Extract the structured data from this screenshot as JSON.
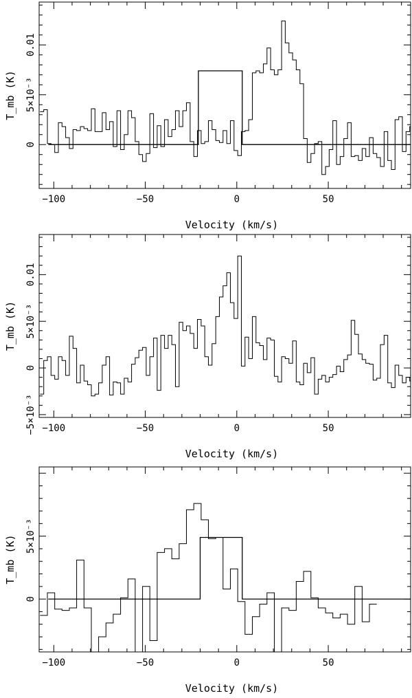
{
  "chart_data": [
    {
      "type": "line",
      "style": "histogram-step",
      "xlabel": "Velocity (km/s)",
      "ylabel": "T_mb (K)",
      "xlim": [
        -108,
        95
      ],
      "ylim": [
        -0.0044,
        0.0143
      ],
      "x_ticks": [
        -100,
        -50,
        0,
        50
      ],
      "x_tick_labels": [
        "−100",
        "−50",
        "0",
        "50"
      ],
      "y_ticks": [
        0,
        0.005,
        0.01
      ],
      "y_tick_labels": [
        "0",
        "5×10⁻³",
        "0.01"
      ],
      "bin_start": -107.5,
      "bin_width": 2,
      "spectrum": [
        0.0033,
        0.0035,
        0.0001,
        0.0,
        -0.0008,
        0.0022,
        0.0018,
        0.0007,
        -0.0004,
        0.0015,
        0.0014,
        0.0018,
        0.0016,
        0.0014,
        0.0036,
        0.0013,
        0.0013,
        0.0032,
        0.0015,
        0.0023,
        -0.0002,
        0.0034,
        -0.0005,
        0.001,
        0.0034,
        0.0027,
        0.0003,
        -0.001,
        -0.0017,
        -0.0009,
        0.0031,
        -0.0003,
        0.0019,
        -0.0002,
        0.0025,
        0.0008,
        0.0015,
        0.0034,
        0.0018,
        0.0034,
        0.0042,
        0.0003,
        -0.0012,
        0.0014,
        0.0001,
        0.0003,
        0.0024,
        0.0015,
        0.0004,
        0.0002,
        0.0014,
        0.0001,
        0.0024,
        -0.0006,
        -0.0011,
        0.0013,
        0.0014,
        0.0025,
        0.0072,
        0.0074,
        0.0072,
        0.0081,
        0.0097,
        0.0075,
        0.007,
        0.0075,
        0.0124,
        0.0102,
        0.0092,
        0.0085,
        0.0075,
        0.0061,
        0.0006,
        -0.0018,
        -0.0009,
        0.0001,
        0.0003,
        -0.003,
        -0.0022,
        -0.0005,
        0.0024,
        -0.002,
        -0.0012,
        0.0006,
        0.0022,
        -0.0012,
        -0.0011,
        -0.0016,
        -0.0004,
        -0.0012,
        0.0007,
        -0.0009,
        -0.0013,
        -0.0022,
        0.0013,
        -0.0016,
        -0.0025,
        0.0025,
        0.0028,
        -0.0007,
        0.0013,
        0.0018,
        -0.001
      ],
      "model": {
        "x": [
          -103,
          -21,
          -21,
          3,
          3,
          95
        ],
        "y": [
          0,
          0,
          0.0074,
          0.0074,
          0,
          0
        ]
      }
    },
    {
      "type": "line",
      "style": "histogram-step",
      "xlabel": "Velocity (km/s)",
      "ylabel": "T_mb (K)",
      "xlim": [
        -108,
        95
      ],
      "ylim": [
        -0.0053,
        0.0143
      ],
      "x_ticks": [
        -100,
        -50,
        0,
        50
      ],
      "x_tick_labels": [
        "−100",
        "−50",
        "0",
        "50"
      ],
      "y_ticks": [
        -0.005,
        0,
        0.005,
        0.01
      ],
      "y_tick_labels": [
        "−5×10⁻³",
        "0",
        "5×10⁻³",
        "0.01"
      ],
      "bin_start": -107.5,
      "bin_width": 2,
      "spectrum": [
        -0.0028,
        0.0008,
        0.0012,
        -0.0008,
        -0.0012,
        0.0012,
        0.0008,
        -0.0008,
        0.0034,
        0.0021,
        -0.0016,
        0.0003,
        -0.0014,
        -0.0018,
        -0.003,
        -0.0028,
        -0.0016,
        0.0003,
        0.0012,
        -0.0029,
        -0.0015,
        -0.0016,
        -0.0028,
        -0.0011,
        -0.0015,
        0.0004,
        0.0011,
        0.0019,
        0.0022,
        -0.0008,
        0.0012,
        0.0032,
        -0.0024,
        0.0035,
        0.0021,
        0.0035,
        0.0025,
        -0.002,
        0.0049,
        0.004,
        0.0045,
        0.0037,
        0.0021,
        0.0052,
        0.0045,
        0.0012,
        0.0003,
        0.0026,
        0.0055,
        0.0076,
        0.0088,
        0.0102,
        0.007,
        0.0053,
        0.012,
        0.0002,
        0.0033,
        0.001,
        0.0055,
        0.0027,
        0.0024,
        0.0009,
        0.0032,
        0.003,
        -0.0009,
        -0.0015,
        0.0012,
        0.001,
        0.0005,
        0.0029,
        -0.0015,
        -0.0018,
        0.0005,
        -0.0005,
        0.0011,
        -0.0028,
        -0.0012,
        -0.0008,
        -0.0015,
        -0.001,
        -0.0007,
        0.0002,
        -0.0004,
        0.0009,
        0.0014,
        0.0051,
        0.0036,
        0.0015,
        0.0009,
        0.0005,
        0.0004,
        -0.0013,
        -0.0011,
        0.0025,
        0.0035,
        -0.0016,
        -0.0021,
        0.0003,
        -0.0008,
        -0.0016,
        -0.001,
        -0.0014,
        0.0013,
        0.0004,
        0.0014,
        0.0009,
        0.0006
      ]
    },
    {
      "type": "line",
      "style": "histogram-step",
      "xlabel": "Velocity (km/s)",
      "ylabel": "T_mb (K)",
      "xlim": [
        -108,
        95
      ],
      "ylim": [
        -0.0042,
        0.0105
      ],
      "x_ticks": [
        -100,
        -50,
        0,
        50
      ],
      "x_tick_labels": [
        "−100",
        "−50",
        "0",
        "50"
      ],
      "y_ticks": [
        0,
        0.005
      ],
      "y_tick_labels": [
        "0",
        "5×10⁻³"
      ],
      "bin_start": -107.5,
      "bin_width": 4,
      "spectrum": [
        -0.0013,
        0.0005,
        -0.0008,
        -0.0009,
        -0.0007,
        0.0031,
        -0.0007,
        -0.0042,
        -0.003,
        -0.0019,
        -0.0012,
        0.0001,
        0.0016,
        -0.0042,
        0.001,
        -0.0033,
        0.0037,
        0.004,
        0.0032,
        0.0044,
        0.0071,
        0.0076,
        0.0063,
        0.0048,
        0.0049,
        0.0008,
        0.0024,
        -0.0002,
        -0.0028,
        -0.0014,
        -0.0004,
        0.0005,
        -0.0042,
        -0.0007,
        -0.0009,
        0.0014,
        0.0022,
        0.0001,
        -0.0007,
        -0.0011,
        -0.0015,
        -0.0012,
        -0.002,
        0.001,
        -0.0018,
        -0.0004
      ],
      "model": {
        "x": [
          -103,
          -20,
          -20,
          3,
          3,
          95
        ],
        "y": [
          0,
          0,
          0.0049,
          0.0049,
          0,
          0
        ]
      }
    }
  ]
}
